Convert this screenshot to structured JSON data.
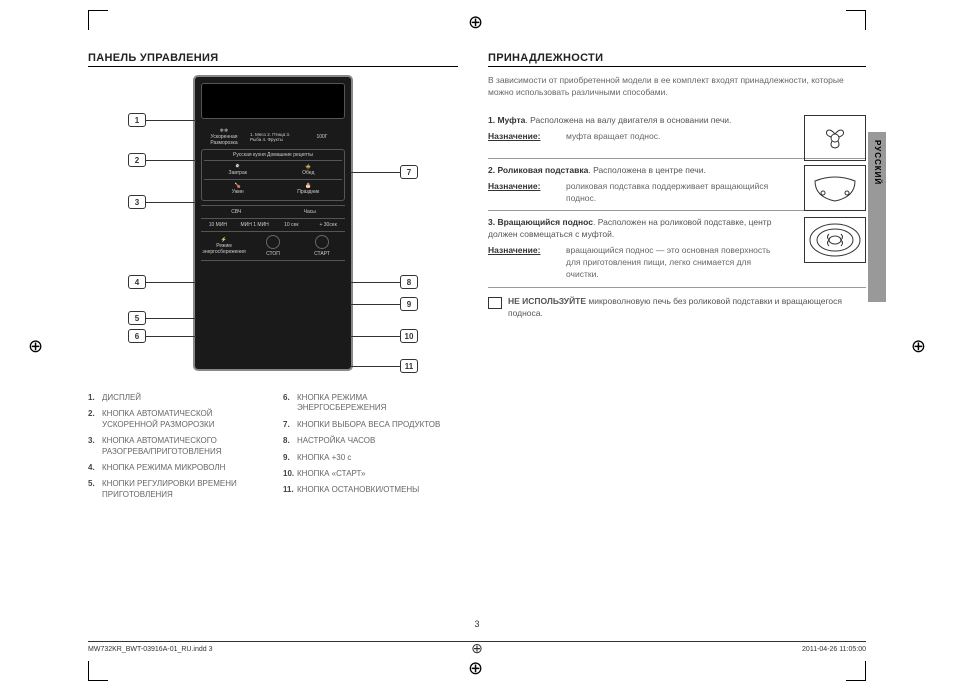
{
  "left": {
    "heading": "ПАНЕЛЬ УПРАВЛЕНИЯ",
    "panel": {
      "row1_left": "Ускоренная Разморозка",
      "row1_mid": "1. Мясо\n2. Птица\n3. Рыба\n4. Фрукты",
      "row1_right": "100Г",
      "section_title": "Русская кухня Домашние рецепты",
      "r_breakfast": "Завтрак",
      "r_lunch": "Обед",
      "r_dinner": "Ужин",
      "r_holiday": "Праздник",
      "row_svch": "СВЧ",
      "row_clock": "Часы",
      "time_10min": "10 МИН",
      "time_1min": "МИН\n1 МИН",
      "time_10sec": "10 сек",
      "time_30sec": "+ 30сек",
      "eco": "Режим энергосбережения",
      "stop": "СТОП",
      "start": "СТАРТ"
    },
    "callouts": {
      "c1": "1",
      "c2": "2",
      "c3": "3",
      "c4": "4",
      "c5": "5",
      "c6": "6",
      "c7": "7",
      "c8": "8",
      "c9": "9",
      "c10": "10",
      "c11": "11"
    },
    "list": [
      {
        "n": "1.",
        "t": "ДИСПЛЕЙ"
      },
      {
        "n": "2.",
        "t": "КНОПКА АВТОМАТИЧЕСКОЙ УСКОРЕННОЙ РАЗМОРОЗКИ"
      },
      {
        "n": "3.",
        "t": "КНОПКА АВТОМАТИЧЕСКОГО РАЗОГРЕВА/ПРИГОТОВЛЕНИЯ"
      },
      {
        "n": "4.",
        "t": "КНОПКА РЕЖИМА МИКРОВОЛН"
      },
      {
        "n": "5.",
        "t": "КНОПКИ РЕГУЛИРОВКИ ВРЕМЕНИ ПРИГОТОВЛЕНИЯ"
      },
      {
        "n": "6.",
        "t": "КНОПКА РЕЖИМА ЭНЕРГОСБЕРЕЖЕНИЯ"
      },
      {
        "n": "7.",
        "t": "КНОПКИ ВЫБОРА ВЕСА ПРОДУКТОВ"
      },
      {
        "n": "8.",
        "t": "НАСТРОЙКА ЧАСОВ"
      },
      {
        "n": "9.",
        "t": "КНОПКА +30 с"
      },
      {
        "n": "10.",
        "t": "КНОПКА «СТАРТ»"
      },
      {
        "n": "11.",
        "t": "КНОПКА ОСТАНОВКИ/ОТМЕНЫ"
      }
    ]
  },
  "right": {
    "heading": "ПРИНАДЛЕЖНОСТИ",
    "intro": "В зависимости от приобретенной модели в ее комплект входят принадлежности, которые можно использовать различными способами.",
    "purpose_label": "Назначение:",
    "items": [
      {
        "n": "1.",
        "title": "Муфта",
        "desc": ". Расположена на валу двигателя в основании печи.",
        "purpose": "муфта вращает поднос."
      },
      {
        "n": "2.",
        "title": "Роликовая подставка",
        "desc": ". Расположена в центре печи.",
        "purpose": "роликовая подставка поддерживает вращающийся поднос."
      },
      {
        "n": "3.",
        "title": "Вращающийся поднос",
        "desc": ". Расположен на роликовой подставке, центр должен совмещаться с муфтой.",
        "purpose": "вращающийся поднос — это основная поверхность для приготовления пищи, легко снимается для очистки."
      }
    ],
    "warn_bold": "НЕ ИСПОЛЬЗУЙТЕ",
    "warn_text": " микроволновую печь без роликовой подставки и вращающегося подноса.",
    "lang": "РУССКИЙ"
  },
  "footer": {
    "left": "MW732KR_BWT-03916A-01_RU.indd   3",
    "right": "2011-04-26   11:05:00",
    "page": "3"
  }
}
